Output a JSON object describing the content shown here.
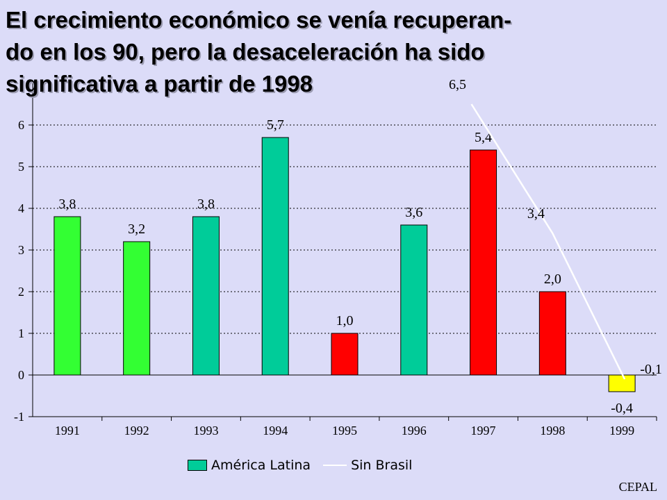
{
  "title": "El crecimiento económico se venía recuperan-do en los 90, pero la desaceleración ha sido significativa a partir de 1998",
  "title_lines": [
    "El crecimiento económico se venía recuperan-",
    "do en los 90, pero la desaceleración ha sido",
    "significativa a partir de 1998"
  ],
  "source": "CEPAL",
  "chart_data": {
    "type": "bar",
    "categories": [
      "1991",
      "1992",
      "1993",
      "1994",
      "1995",
      "1996",
      "1997",
      "1998",
      "1999"
    ],
    "series": [
      {
        "name": "América Latina",
        "values": [
          3.8,
          3.2,
          3.8,
          5.7,
          1.0,
          3.6,
          5.4,
          2.0,
          -0.4
        ],
        "labels": [
          "3,8",
          "3,2",
          "3,8",
          "5,7",
          "1,0",
          "3,6",
          "5,4",
          "2,0",
          "-0,4"
        ],
        "colors": [
          "#33ff33",
          "#33ff33",
          "#00cc99",
          "#00cc99",
          "#ff0000",
          "#00cc99",
          "#ff0000",
          "#ff0000",
          "#ffff00"
        ]
      },
      {
        "name": "Sin Brasil",
        "type": "line",
        "x": [
          "1997",
          "1998",
          "1999"
        ],
        "values": [
          6.5,
          3.4,
          -0.1
        ],
        "labels": [
          "6,5",
          "3,4",
          "-0,1"
        ],
        "color": "#ffffff"
      }
    ],
    "ylim": [
      -1,
      7
    ],
    "yticks": [
      -1,
      0,
      1,
      2,
      3,
      4,
      5,
      6
    ],
    "grid": true,
    "legend_position": "bottom",
    "legend_swatch_color": "#00cc99"
  }
}
